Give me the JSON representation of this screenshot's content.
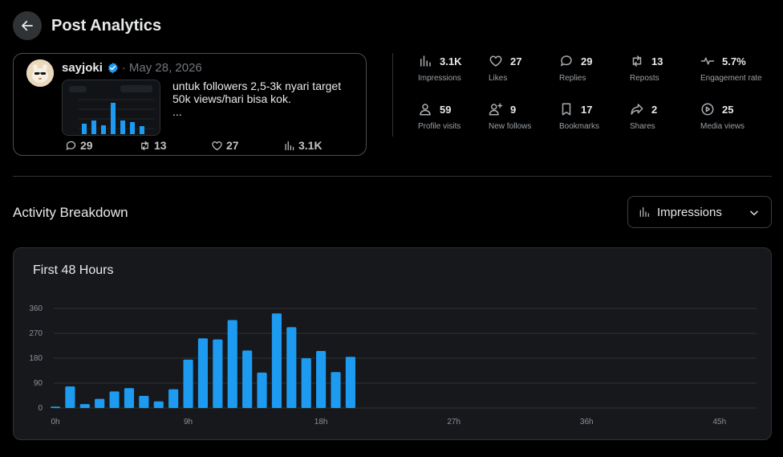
{
  "header": {
    "title": "Post Analytics"
  },
  "post": {
    "author": "sayjoki",
    "separator": "·",
    "date": "May 28, 2026",
    "text_lines": [
      "untuk followers 2,5-3k nyari target",
      "50k views/hari bisa kok.",
      "..."
    ],
    "replies": "29",
    "reposts": "13",
    "likes": "27",
    "views": "3.1K"
  },
  "metrics": [
    {
      "icon": "bar-chart-icon",
      "value": "3.1K",
      "label": "Impressions"
    },
    {
      "icon": "heart-icon",
      "value": "27",
      "label": "Likes"
    },
    {
      "icon": "reply-icon",
      "value": "29",
      "label": "Replies"
    },
    {
      "icon": "repost-icon",
      "value": "13",
      "label": "Reposts"
    },
    {
      "icon": "pulse-icon",
      "value": "5.7%",
      "label": "Engagement rate"
    },
    {
      "icon": "person-icon",
      "value": "59",
      "label": "Profile visits"
    },
    {
      "icon": "person-add-icon",
      "value": "9",
      "label": "New follows"
    },
    {
      "icon": "bookmark-icon",
      "value": "17",
      "label": "Bookmarks"
    },
    {
      "icon": "share-icon",
      "value": "2",
      "label": "Shares"
    },
    {
      "icon": "play-icon",
      "value": "25",
      "label": "Media views"
    }
  ],
  "activity": {
    "title": "Activity Breakdown",
    "dropdown_value": "Impressions"
  },
  "colors": {
    "accent": "#1d9bf0",
    "background": "#000000",
    "card": "#16181c"
  },
  "chart_data": {
    "type": "bar",
    "title": "First 48 Hours",
    "xlabel": "",
    "ylabel": "",
    "ylim": [
      0,
      360
    ],
    "xlim": [
      0,
      48
    ],
    "yticks": [
      "0",
      "90",
      "180",
      "270",
      "360"
    ],
    "xticks": [
      "0h",
      "9h",
      "18h",
      "27h",
      "36h",
      "45h"
    ],
    "categories": [
      "0",
      "1",
      "2",
      "3",
      "4",
      "5",
      "6",
      "7",
      "8",
      "9",
      "10",
      "11",
      "12",
      "13",
      "14",
      "15",
      "16",
      "17",
      "18",
      "19",
      "20"
    ],
    "values": [
      5,
      78,
      14,
      33,
      60,
      72,
      44,
      24,
      68,
      175,
      252,
      248,
      318,
      208,
      128,
      342,
      292,
      180,
      206,
      130,
      185
    ],
    "grid": true,
    "color": "#1d9bf0"
  }
}
